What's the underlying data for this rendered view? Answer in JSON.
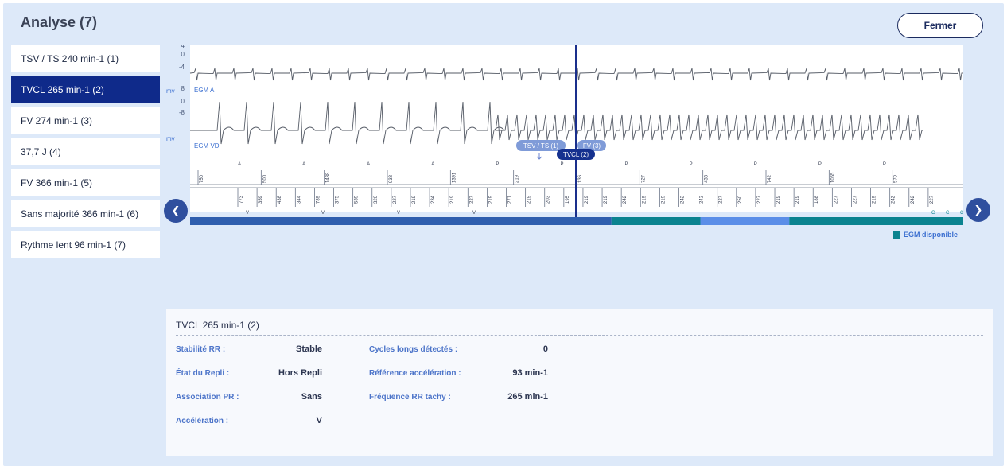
{
  "header": {
    "title": "Analyse (7)",
    "close_label": "Fermer"
  },
  "events": [
    {
      "label": "TSV / TS 240 min-1 (1)",
      "active": false
    },
    {
      "label": "TVCL 265 min-1 (2)",
      "active": true
    },
    {
      "label": "FV 274 min-1 (3)",
      "active": false
    },
    {
      "label": "37,7 J (4)",
      "active": false
    },
    {
      "label": "FV 366 min-1 (5)",
      "active": false
    },
    {
      "label": "Sans majorité 366 min-1 (6)",
      "active": false
    },
    {
      "label": "Rythme lent 96 min-1 (7)",
      "active": false
    }
  ],
  "chart": {
    "unit": "mv",
    "channels": [
      {
        "name": "EGM A",
        "ticks": [
          "4",
          "0",
          "-4"
        ]
      },
      {
        "name": "EGM VD",
        "ticks": [
          "8",
          "0",
          "-8"
        ]
      }
    ],
    "markers": [
      {
        "label": "TSV / TS (1)"
      },
      {
        "label": "FV (3)"
      },
      {
        "label": "TVCL (2)"
      }
    ],
    "channel_a_markers": [
      "A",
      "A",
      "A",
      "A",
      "P",
      "P",
      "P",
      "P",
      "P",
      "P",
      "P"
    ],
    "channel_a_intervals": [
      "750",
      "500",
      "1438",
      "938",
      "1391",
      "219",
      "136",
      "727",
      "438",
      "742",
      "1055",
      "570"
    ],
    "channel_v_intervals": [
      "773",
      "359",
      "438",
      "344",
      "789",
      "375",
      "539",
      "320",
      "227",
      "219",
      "234",
      "219",
      "227",
      "219",
      "271",
      "219",
      "203",
      "195",
      "219",
      "219",
      "242",
      "219",
      "219",
      "242",
      "242",
      "227",
      "250",
      "227",
      "219",
      "219",
      "188",
      "227",
      "227",
      "219",
      "242",
      "242",
      "227"
    ],
    "channel_v_markers": [
      "V",
      "V",
      "V",
      "V",
      "C",
      "C",
      "C"
    ],
    "progress_segments": [
      {
        "fraction": 0.545,
        "color": "#2f5eae"
      },
      {
        "fraction": 0.115,
        "color": "#0b8390"
      },
      {
        "fraction": 0.115,
        "color": "#5b8ee8"
      },
      {
        "fraction": 0.225,
        "color": "#0b8390"
      }
    ],
    "legend": "EGM disponible",
    "legend_color": "#0b8390"
  },
  "details": {
    "title": "TVCL 265 min-1 (2)",
    "left": [
      {
        "label": "Stabilité RR :",
        "value": "Stable"
      },
      {
        "label": "État du Repli :",
        "value": "Hors Repli"
      },
      {
        "label": "Association PR :",
        "value": "Sans"
      },
      {
        "label": "Accélération :",
        "value": "V"
      }
    ],
    "right": [
      {
        "label": "Cycles longs détectés :",
        "value": "0"
      },
      {
        "label": "Référence accélération :",
        "value": "93 min-1"
      },
      {
        "label": "Fréquence RR tachy :",
        "value": "265 min-1"
      }
    ]
  }
}
